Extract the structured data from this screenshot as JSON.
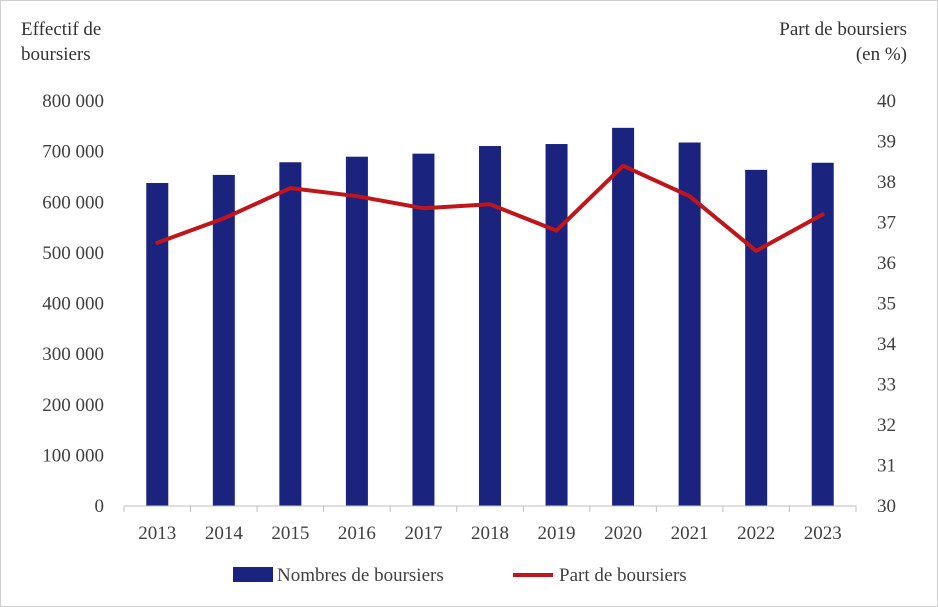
{
  "chart_data": {
    "type": "bar+line",
    "categories": [
      "2013",
      "2014",
      "2015",
      "2016",
      "2017",
      "2018",
      "2019",
      "2020",
      "2021",
      "2022",
      "2023"
    ],
    "series": [
      {
        "name": "Nombres de boursiers",
        "type": "bar",
        "axis": "left",
        "color": "#1a237e",
        "values": [
          638000,
          654000,
          679000,
          690000,
          696000,
          711000,
          715000,
          747000,
          718000,
          664000,
          678000
        ]
      },
      {
        "name": "Part de boursiers",
        "type": "line",
        "axis": "right",
        "color": "#c0151b",
        "values": [
          36.5,
          37.1,
          37.85,
          37.65,
          37.35,
          37.45,
          36.8,
          38.4,
          37.65,
          36.3,
          37.2
        ]
      }
    ],
    "y_left": {
      "label_line1": "Effectif de",
      "label_line2": "boursiers",
      "min": 0,
      "max": 800000,
      "ticks": [
        "0",
        "100 000",
        "200 000",
        "300 000",
        "400 000",
        "500 000",
        "600 000",
        "700 000",
        "800 000"
      ]
    },
    "y_right": {
      "label_line1": "Part de boursiers",
      "label_line2": "(en %)",
      "min": 30,
      "max": 40,
      "ticks": [
        "30",
        "31",
        "32",
        "33",
        "34",
        "35",
        "36",
        "37",
        "38",
        "39",
        "40"
      ]
    },
    "legend_position": "bottom-center",
    "grid": false
  }
}
